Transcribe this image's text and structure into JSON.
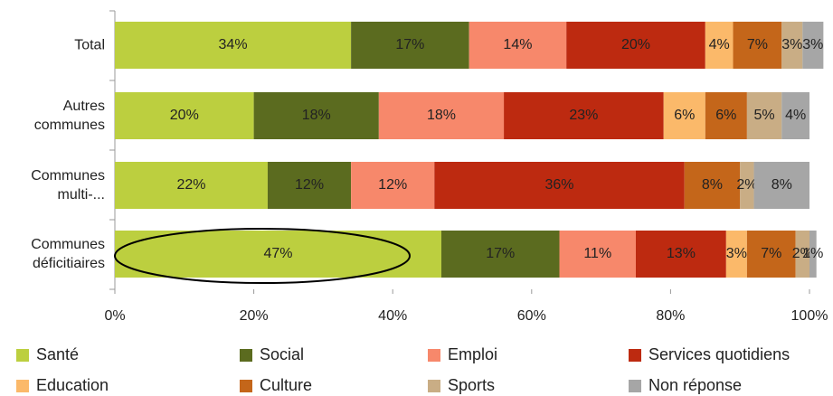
{
  "chart_data": {
    "type": "stacked-barh",
    "categories": [
      "Total",
      "Autres communes",
      "Communes multi-...",
      "Communes déficitiaires"
    ],
    "series": [
      {
        "name": "Santé",
        "color": "#bccf3f",
        "values": [
          34,
          20,
          22,
          47
        ],
        "value_labels": [
          "34%",
          "20%",
          "22%",
          "47%"
        ]
      },
      {
        "name": "Social",
        "color": "#5b6b1f",
        "values": [
          17,
          18,
          12,
          17
        ],
        "value_labels": [
          "17%",
          "18%",
          "12%",
          "17%"
        ]
      },
      {
        "name": "Emploi",
        "color": "#f7886b",
        "values": [
          14,
          18,
          12,
          11
        ],
        "value_labels": [
          "14%",
          "18%",
          "12%",
          "11%"
        ]
      },
      {
        "name": "Services quotidiens",
        "color": "#bd2a10",
        "values": [
          20,
          23,
          36,
          13
        ],
        "value_labels": [
          "20%",
          "23%",
          "36%",
          "13%"
        ]
      },
      {
        "name": "Education",
        "color": "#fbb96a",
        "values": [
          4,
          6,
          0,
          3
        ],
        "value_labels": [
          "4%",
          "6%",
          null,
          "3%"
        ]
      },
      {
        "name": "Culture",
        "color": "#c4661a",
        "values": [
          7,
          6,
          8,
          7
        ],
        "value_labels": [
          "7%",
          "6%",
          "8%",
          "7%"
        ]
      },
      {
        "name": "Sports",
        "color": "#c9ad85",
        "values": [
          3,
          5,
          2,
          2
        ],
        "value_labels": [
          "3%",
          "5%",
          "2%",
          "2%"
        ]
      },
      {
        "name": "Non réponse",
        "color": "#a6a6a6",
        "values": [
          3,
          4,
          8,
          1
        ],
        "value_labels": [
          "3%",
          "4%",
          "8%",
          "1%"
        ]
      }
    ],
    "xlim": [
      0,
      100
    ],
    "xticks": [
      {
        "value": 0,
        "label": "0%"
      },
      {
        "value": 20,
        "label": "20%"
      },
      {
        "value": 40,
        "label": "40%"
      },
      {
        "value": 60,
        "label": "60%"
      },
      {
        "value": 80,
        "label": "80%"
      },
      {
        "value": 100,
        "label": "100%"
      }
    ]
  }
}
